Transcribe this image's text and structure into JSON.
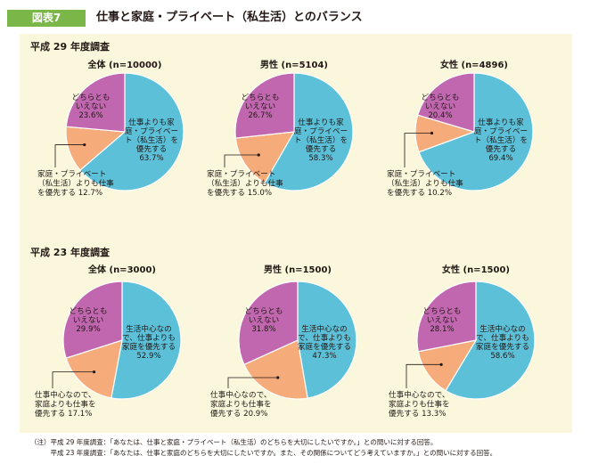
{
  "figure": {
    "badge": "図表7",
    "title": "仕事と家庭・プライベート（私生活）とのバランス"
  },
  "sections": [
    {
      "label": "平成 29 年度調査"
    },
    {
      "label": "平成 23 年度調査"
    }
  ],
  "colors": {
    "primary": "#5bc0d8",
    "neither": "#c067b0",
    "work": "#f6ab7a",
    "panel_bg": "#fbf7dc",
    "badge_bg": "#7ab648"
  },
  "chart_data": [
    {
      "type": "pie",
      "title": "全体 (n=10000)",
      "slices": [
        {
          "label_lines": [
            "仕事よりも家",
            "庭・プライベー",
            "ト（私生活）を",
            "優先する",
            "63.7%"
          ],
          "value": 63.7,
          "color": "#5bc0d8"
        },
        {
          "label_lines": [
            "家庭・プライベート",
            "（私生活）よりも仕事",
            "を優先する 12.7%"
          ],
          "value": 12.7,
          "color": "#f6ab7a"
        },
        {
          "label_lines": [
            "どちらとも",
            "いえない",
            "23.6%"
          ],
          "value": 23.6,
          "color": "#c067b0"
        }
      ]
    },
    {
      "type": "pie",
      "title": "男性 (n=5104)",
      "slices": [
        {
          "label_lines": [
            "仕事よりも家",
            "庭・プライベー",
            "ト（私生活）を",
            "優先する",
            "58.3%"
          ],
          "value": 58.3,
          "color": "#5bc0d8"
        },
        {
          "label_lines": [
            "家庭・プライベート",
            "（私生活）よりも仕事",
            "を優先する 15.0%"
          ],
          "value": 15.0,
          "color": "#f6ab7a"
        },
        {
          "label_lines": [
            "どちらとも",
            "いえない",
            "26.7%"
          ],
          "value": 26.7,
          "color": "#c067b0"
        }
      ]
    },
    {
      "type": "pie",
      "title": "女性 (n=4896)",
      "slices": [
        {
          "label_lines": [
            "仕事よりも家",
            "庭・プライベー",
            "ト（私生活）を",
            "優先する",
            "69.4%"
          ],
          "value": 69.4,
          "color": "#5bc0d8"
        },
        {
          "label_lines": [
            "家庭・プライベート",
            "（私生活）よりも仕事",
            "を優先する 10.2%"
          ],
          "value": 10.2,
          "color": "#f6ab7a"
        },
        {
          "label_lines": [
            "どちらとも",
            "いえない",
            "20.4%"
          ],
          "value": 20.4,
          "color": "#c067b0"
        }
      ]
    },
    {
      "type": "pie",
      "title": "全体 (n=3000)",
      "slices": [
        {
          "label_lines": [
            "生活中心なの",
            "で、仕事よりも",
            "家庭を優先する",
            "52.9%"
          ],
          "value": 52.9,
          "color": "#5bc0d8"
        },
        {
          "label_lines": [
            "仕事中心なので、",
            "家庭よりも仕事を",
            "優先する 17.1%"
          ],
          "value": 17.1,
          "color": "#f6ab7a"
        },
        {
          "label_lines": [
            "どちらとも",
            "いえない",
            "29.9%"
          ],
          "value": 29.9,
          "color": "#c067b0"
        }
      ]
    },
    {
      "type": "pie",
      "title": "男性 (n=1500)",
      "slices": [
        {
          "label_lines": [
            "生活中心なの",
            "で、仕事よりも",
            "家庭を優先する",
            "47.3%"
          ],
          "value": 47.3,
          "color": "#5bc0d8"
        },
        {
          "label_lines": [
            "仕事中心なので、",
            "家庭よりも仕事を",
            "優先する 20.9%"
          ],
          "value": 20.9,
          "color": "#f6ab7a"
        },
        {
          "label_lines": [
            "どちらとも",
            "いえない",
            "31.8%"
          ],
          "value": 31.8,
          "color": "#c067b0"
        }
      ]
    },
    {
      "type": "pie",
      "title": "女性 (n=1500)",
      "slices": [
        {
          "label_lines": [
            "生活中心なの",
            "で、仕事よりも",
            "家庭を優先する",
            "58.6%"
          ],
          "value": 58.6,
          "color": "#5bc0d8"
        },
        {
          "label_lines": [
            "仕事中心なので、",
            "家庭よりも仕事を",
            "優先する 13.3%"
          ],
          "value": 13.3,
          "color": "#f6ab7a"
        },
        {
          "label_lines": [
            "どちらとも",
            "いえない",
            "28.1%"
          ],
          "value": 28.1,
          "color": "#c067b0"
        }
      ]
    }
  ],
  "notes": [
    "（注）平成 29 年度調査：「あなたは、仕事と家庭・プライベート（私生活）のどちらを大切にしたいですか。」との問いに対する回答。",
    "　　　平成 23 年度調査：「あなたは、仕事と家庭のどちらを大切にしたいですか。また、その関係についてどう考えていますか。」との問いに対する回答。"
  ]
}
